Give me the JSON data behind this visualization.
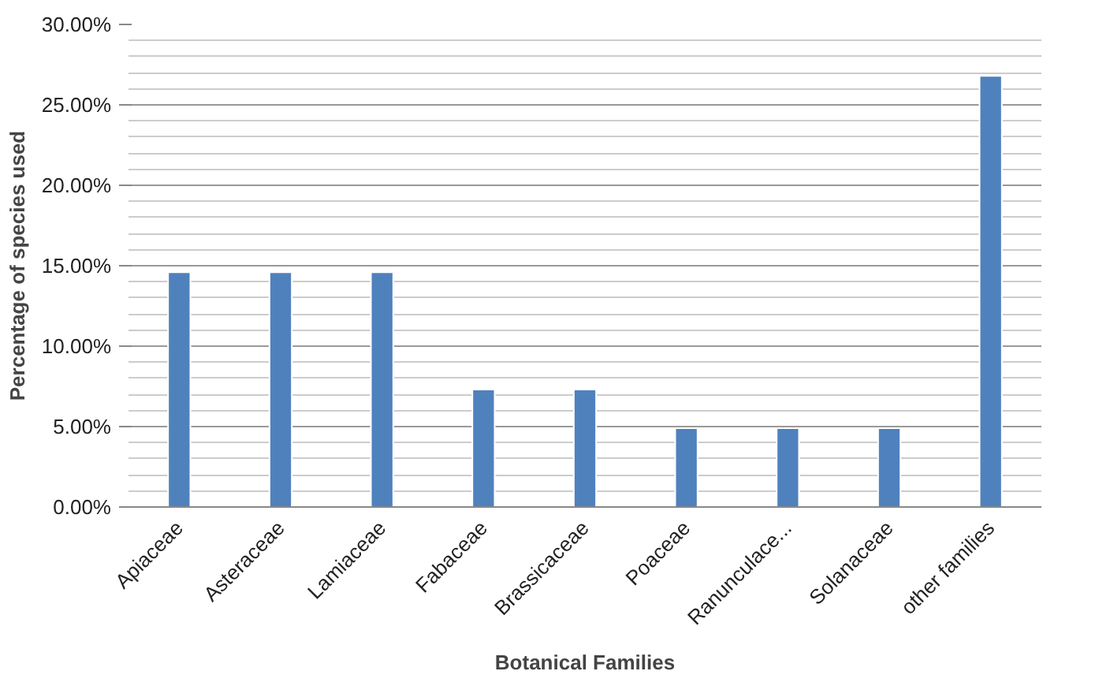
{
  "chart_data": {
    "type": "bar",
    "xlabel": "Botanical Families",
    "ylabel": "Percentage of species used",
    "categories": [
      "Apiaceae",
      "Asteraceae",
      "Lamiaceae",
      "Fabaceae",
      "Brassicaceae",
      "Poaceae",
      "Ranunculace...",
      "Solanaceae",
      "other families"
    ],
    "values": [
      14.6,
      14.6,
      14.6,
      7.3,
      7.3,
      4.9,
      4.9,
      4.9,
      26.8
    ],
    "color": "#4f81bd",
    "ylim": [
      0,
      30
    ],
    "yticks": [
      {
        "value": 0,
        "label": "0.00%"
      },
      {
        "value": 5,
        "label": "5.00%"
      },
      {
        "value": 10,
        "label": "10.00%"
      },
      {
        "value": 15,
        "label": "15.00%"
      },
      {
        "value": 20,
        "label": "20.00%"
      },
      {
        "value": 25,
        "label": "25.00%"
      },
      {
        "value": 30,
        "label": "30.00%"
      }
    ],
    "grid": "y"
  }
}
